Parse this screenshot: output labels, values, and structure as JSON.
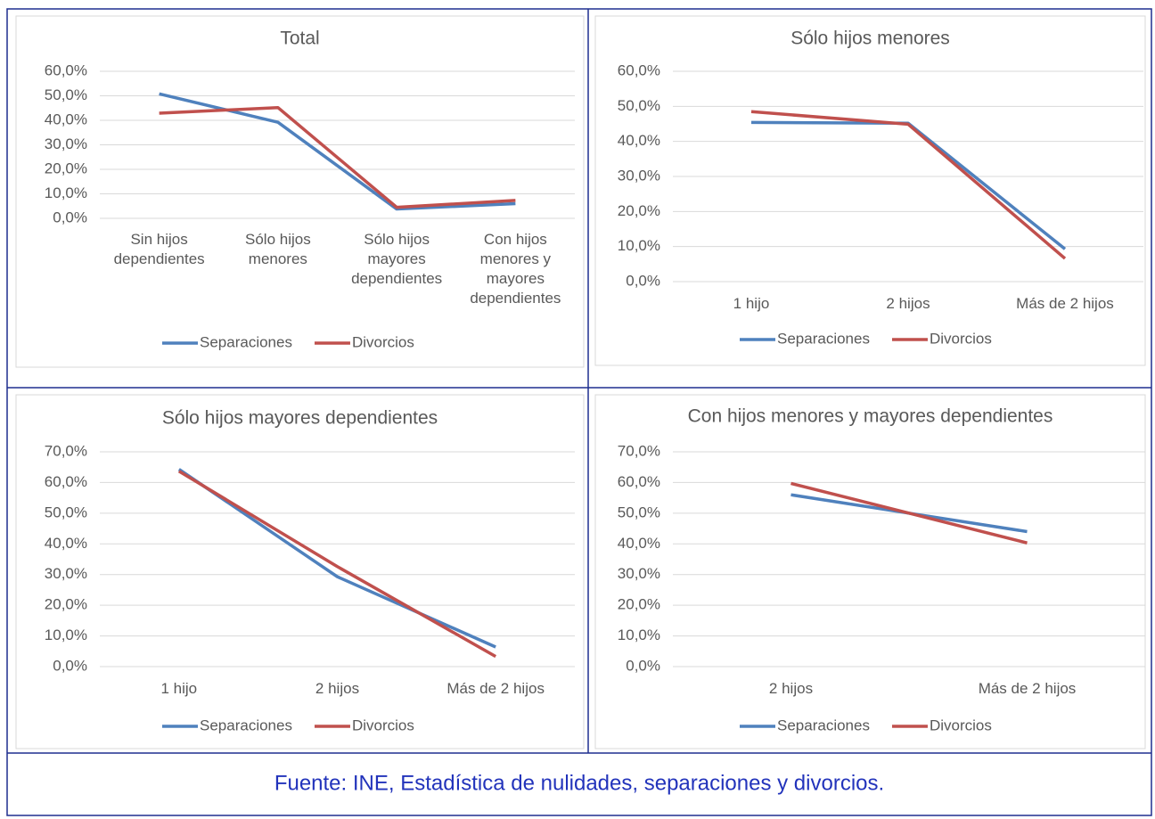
{
  "chart_data": [
    {
      "type": "line",
      "title": "Total",
      "categories": [
        "Sin hijos dependientes",
        "Sólo hijos menores",
        "Sólo hijos mayores dependientes",
        "Con hijos menores y mayores dependientes"
      ],
      "series": [
        {
          "name": "Separaciones",
          "color": "#4f81bd",
          "values": [
            50.8,
            39.2,
            3.8,
            6.0
          ]
        },
        {
          "name": "Divorcios",
          "color": "#c0504d",
          "values": [
            42.9,
            45.2,
            4.5,
            7.3
          ]
        }
      ],
      "ylim": [
        0,
        60
      ],
      "yticks": [
        {
          "value": 0,
          "label": "0,0%"
        },
        {
          "value": 10,
          "label": "10,0%"
        },
        {
          "value": 20,
          "label": "20,0%"
        },
        {
          "value": 30,
          "label": "30,0%"
        },
        {
          "value": 40,
          "label": "40,0%"
        },
        {
          "value": 50,
          "label": "50,0%"
        },
        {
          "value": 60,
          "label": "60,0%"
        }
      ],
      "grid": true,
      "legend": "bottom"
    },
    {
      "type": "line",
      "title": "Sólo hijos menores",
      "categories": [
        "1 hijo",
        "2 hijos",
        "Más de 2 hijos"
      ],
      "series": [
        {
          "name": "Separaciones",
          "color": "#4f81bd",
          "values": [
            45.4,
            45.2,
            9.3
          ]
        },
        {
          "name": "Divorcios",
          "color": "#c0504d",
          "values": [
            48.5,
            44.9,
            6.6
          ]
        }
      ],
      "ylim": [
        0,
        60
      ],
      "yticks": [
        {
          "value": 0,
          "label": "0,0%"
        },
        {
          "value": 10,
          "label": "10,0%"
        },
        {
          "value": 20,
          "label": "20,0%"
        },
        {
          "value": 30,
          "label": "30,0%"
        },
        {
          "value": 40,
          "label": "40,0%"
        },
        {
          "value": 50,
          "label": "50,0%"
        },
        {
          "value": 60,
          "label": "60,0%"
        }
      ],
      "grid": true,
      "legend": "bottom"
    },
    {
      "type": "line",
      "title": "Sólo hijos mayores dependientes",
      "categories": [
        "1 hijo",
        "2 hijos",
        "Más de 2 hijos"
      ],
      "series": [
        {
          "name": "Separaciones",
          "color": "#4f81bd",
          "values": [
            64.3,
            29.3,
            6.4
          ]
        },
        {
          "name": "Divorcios",
          "color": "#c0504d",
          "values": [
            63.7,
            32.6,
            3.3
          ]
        }
      ],
      "ylim": [
        0,
        70
      ],
      "yticks": [
        {
          "value": 0,
          "label": "0,0%"
        },
        {
          "value": 10,
          "label": "10,0%"
        },
        {
          "value": 20,
          "label": "20,0%"
        },
        {
          "value": 30,
          "label": "30,0%"
        },
        {
          "value": 40,
          "label": "40,0%"
        },
        {
          "value": 50,
          "label": "50,0%"
        },
        {
          "value": 60,
          "label": "60,0%"
        },
        {
          "value": 70,
          "label": "70,0%"
        }
      ],
      "grid": true,
      "legend": "bottom"
    },
    {
      "type": "line",
      "title": "Con hijos menores y mayores dependientes",
      "categories": [
        "2 hijos",
        "Más de 2 hijos"
      ],
      "series": [
        {
          "name": "Separaciones",
          "color": "#4f81bd",
          "values": [
            56.0,
            44.0
          ]
        },
        {
          "name": "Divorcios",
          "color": "#c0504d",
          "values": [
            59.7,
            40.3
          ]
        }
      ],
      "ylim": [
        0,
        70
      ],
      "yticks": [
        {
          "value": 0,
          "label": "0,0%"
        },
        {
          "value": 10,
          "label": "10,0%"
        },
        {
          "value": 20,
          "label": "20,0%"
        },
        {
          "value": 30,
          "label": "30,0%"
        },
        {
          "value": 40,
          "label": "40,0%"
        },
        {
          "value": 50,
          "label": "50,0%"
        },
        {
          "value": 60,
          "label": "60,0%"
        },
        {
          "value": 70,
          "label": "70,0%"
        }
      ],
      "grid": true,
      "legend": "bottom"
    }
  ],
  "source": "Fuente: INE, Estadística de nulidades, separaciones y divorcios."
}
